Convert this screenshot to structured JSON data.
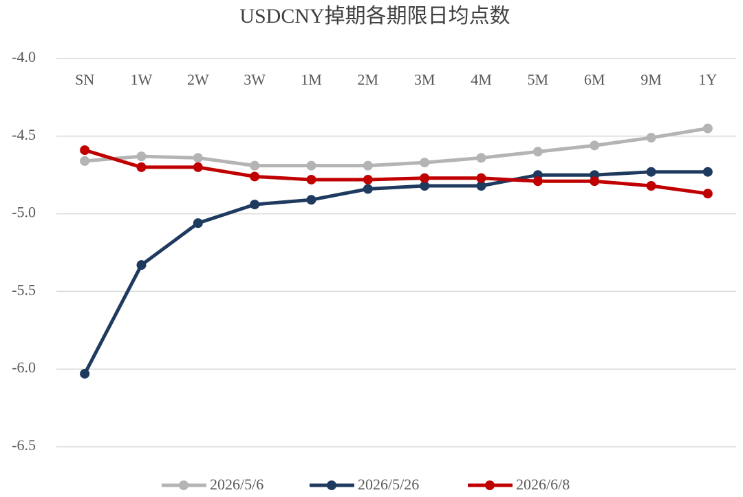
{
  "chart_data": {
    "type": "line",
    "title": "USDCNY掉期各期限日均点数",
    "categories": [
      "SN",
      "1W",
      "2W",
      "3W",
      "1M",
      "2M",
      "3M",
      "4M",
      "5M",
      "6M",
      "9M",
      "1Y"
    ],
    "series": [
      {
        "name": "2026/5/6",
        "color": "#b4b4b4",
        "values": [
          -4.66,
          -4.63,
          -4.64,
          -4.69,
          -4.69,
          -4.69,
          -4.67,
          -4.64,
          -4.6,
          -4.56,
          -4.51,
          -4.45
        ]
      },
      {
        "name": "2026/5/26",
        "color": "#1f3a5f",
        "values": [
          -6.03,
          -5.33,
          -5.06,
          -4.94,
          -4.91,
          -4.84,
          -4.82,
          -4.82,
          -4.75,
          -4.75,
          -4.73,
          -4.73
        ]
      },
      {
        "name": "2026/6/8",
        "color": "#c00000",
        "values": [
          -4.59,
          -4.7,
          -4.7,
          -4.76,
          -4.78,
          -4.78,
          -4.77,
          -4.77,
          -4.79,
          -4.79,
          -4.82,
          -4.87
        ]
      }
    ],
    "ylim": [
      -6.5,
      -4.0
    ],
    "yticks": [
      {
        "value": -4.0,
        "label": "-4.0"
      },
      -4.5,
      {
        "value": -5.0,
        "label": "-5.0"
      },
      -5.5,
      {
        "value": -6.0,
        "label": "-6.0"
      },
      -6.5
    ],
    "grid": true,
    "legend": "bottom"
  }
}
